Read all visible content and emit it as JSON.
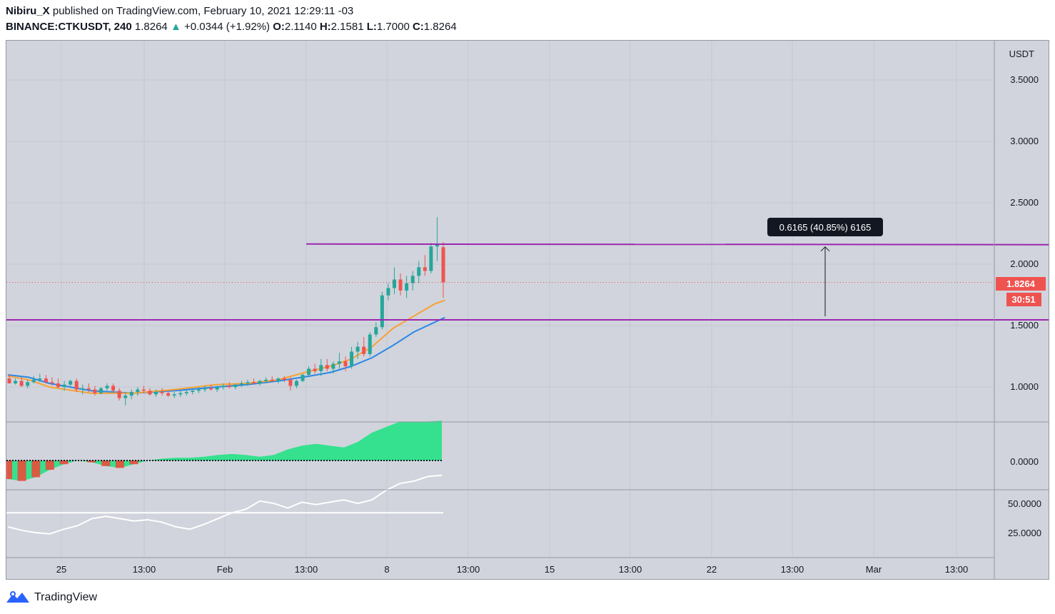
{
  "header": {
    "author": "Nibiru_X",
    "published_text": "published on TradingView.com, February 10, 2021 12:29:11 -03",
    "symbol": "BINANCE:CTKUSDT, 240",
    "last": "1.8264",
    "change": "+0.0344 (+1.92%)",
    "o_label": "O:",
    "o_value": "2.1140",
    "h_label": "H:",
    "h_value": "2.1581",
    "l_label": "L:",
    "l_value": "1.7000",
    "c_label": "C:",
    "c_value": "1.8264"
  },
  "price_scale": {
    "currency": "USDT",
    "ticks": [
      "3.5000",
      "3.0000",
      "2.5000",
      "2.0000",
      "1.5000",
      "1.0000"
    ],
    "last_price_label": "1.8264",
    "countdown_label": "30:51"
  },
  "oscillator_scale": {
    "ticks": [
      "0.0000"
    ]
  },
  "rsi_scale": {
    "ticks": [
      "50.0000",
      "25.0000"
    ]
  },
  "time_axis": {
    "ticks": [
      "25",
      "13:00",
      "Feb",
      "13:00",
      "8",
      "13:00",
      "15",
      "13:00",
      "22",
      "13:00",
      "Mar",
      "13:00"
    ]
  },
  "measure_label": "0.6165 (40.85%) 6165",
  "horizontal_lines": {
    "upper": 2.1405,
    "lower": 1.5195
  },
  "colors": {
    "up": "#26a69a",
    "down": "#ef5350",
    "pane_bg": "#d1d4dc",
    "levels": "#9c27b0",
    "ema_fast": "#f7a233",
    "ema_slow": "#2b87e6"
  },
  "footer": {
    "brand": "TradingView"
  },
  "chart_data": {
    "type": "candlestick",
    "symbol": "BINANCE:CTKUSDT",
    "timeframe": "240",
    "ylim": [
      0.55,
      3.7
    ],
    "x_range_bars": [
      0,
      363
    ],
    "ohlc": [
      [
        1.04,
        1.07,
        1.02,
        1.0
      ],
      [
        1.0,
        1.04,
        0.99,
        1.02
      ],
      [
        1.02,
        1.05,
        0.97,
        0.98
      ],
      [
        0.98,
        1.03,
        0.96,
        1.01
      ],
      [
        1.01,
        1.06,
        1.0,
        1.03
      ],
      [
        1.03,
        1.08,
        1.01,
        1.04
      ],
      [
        1.04,
        1.07,
        1.0,
        1.01
      ],
      [
        1.01,
        1.05,
        0.98,
        1.0
      ],
      [
        1.0,
        1.04,
        0.96,
        0.97
      ],
      [
        0.97,
        1.02,
        0.94,
        0.99
      ],
      [
        0.99,
        1.03,
        0.97,
        1.02
      ],
      [
        1.02,
        1.04,
        0.93,
        0.95
      ],
      [
        0.95,
        0.99,
        0.91,
        0.96
      ],
      [
        0.96,
        1.0,
        0.93,
        0.95
      ],
      [
        0.95,
        0.98,
        0.9,
        0.92
      ],
      [
        0.92,
        0.97,
        0.91,
        0.96
      ],
      [
        0.96,
        1.0,
        0.94,
        0.98
      ],
      [
        0.98,
        1.0,
        0.93,
        0.94
      ],
      [
        0.94,
        0.96,
        0.86,
        0.88
      ],
      [
        0.88,
        0.92,
        0.82,
        0.9
      ],
      [
        0.9,
        0.95,
        0.87,
        0.93
      ],
      [
        0.93,
        0.97,
        0.9,
        0.95
      ],
      [
        0.95,
        0.98,
        0.92,
        0.94
      ],
      [
        0.94,
        0.96,
        0.9,
        0.91
      ],
      [
        0.91,
        0.95,
        0.89,
        0.93
      ],
      [
        0.93,
        0.96,
        0.9,
        0.92
      ],
      [
        0.92,
        0.94,
        0.89,
        0.9
      ],
      [
        0.9,
        0.93,
        0.88,
        0.91
      ],
      [
        0.91,
        0.94,
        0.89,
        0.92
      ],
      [
        0.92,
        0.95,
        0.9,
        0.93
      ],
      [
        0.93,
        0.96,
        0.91,
        0.94
      ],
      [
        0.94,
        0.97,
        0.92,
        0.95
      ],
      [
        0.95,
        0.98,
        0.93,
        0.96
      ],
      [
        0.96,
        0.99,
        0.94,
        0.95
      ],
      [
        0.95,
        0.98,
        0.93,
        0.97
      ],
      [
        0.97,
        1.0,
        0.95,
        0.98
      ],
      [
        0.98,
        1.01,
        0.96,
        0.97
      ],
      [
        0.97,
        1.0,
        0.95,
        0.99
      ],
      [
        0.99,
        1.02,
        0.97,
        1.0
      ],
      [
        1.0,
        1.03,
        0.98,
        1.01
      ],
      [
        1.01,
        1.04,
        0.99,
        1.0
      ],
      [
        1.0,
        1.03,
        0.98,
        1.02
      ],
      [
        1.02,
        1.05,
        1.0,
        1.03
      ],
      [
        1.03,
        1.06,
        1.01,
        1.02
      ],
      [
        1.02,
        1.05,
        1.0,
        1.04
      ],
      [
        1.04,
        1.06,
        1.01,
        1.03
      ],
      [
        1.03,
        1.05,
        0.94,
        0.98
      ],
      [
        0.98,
        1.03,
        0.96,
        1.02
      ],
      [
        1.02,
        1.08,
        1.01,
        1.07
      ],
      [
        1.07,
        1.14,
        1.05,
        1.12
      ],
      [
        1.12,
        1.16,
        1.08,
        1.1
      ],
      [
        1.1,
        1.2,
        1.06,
        1.15
      ],
      [
        1.15,
        1.2,
        1.1,
        1.12
      ],
      [
        1.12,
        1.18,
        1.08,
        1.16
      ],
      [
        1.16,
        1.25,
        1.12,
        1.18
      ],
      [
        1.18,
        1.22,
        1.1,
        1.14
      ],
      [
        1.14,
        1.3,
        1.12,
        1.26
      ],
      [
        1.26,
        1.34,
        1.2,
        1.3
      ],
      [
        1.3,
        1.38,
        1.22,
        1.24
      ],
      [
        1.24,
        1.42,
        1.22,
        1.4
      ],
      [
        1.4,
        1.5,
        1.38,
        1.46
      ],
      [
        1.46,
        1.75,
        1.44,
        1.72
      ],
      [
        1.72,
        1.82,
        1.68,
        1.78
      ],
      [
        1.78,
        1.95,
        1.73,
        1.85
      ],
      [
        1.85,
        1.9,
        1.72,
        1.76
      ],
      [
        1.76,
        1.88,
        1.7,
        1.82
      ],
      [
        1.82,
        1.92,
        1.76,
        1.88
      ],
      [
        1.88,
        2.0,
        1.82,
        1.95
      ],
      [
        1.95,
        2.05,
        1.88,
        1.92
      ],
      [
        1.92,
        2.15,
        1.9,
        2.12
      ],
      [
        2.12,
        2.36,
        2.0,
        2.14
      ],
      [
        2.114,
        2.158,
        1.7,
        1.8264
      ]
    ],
    "ema_fast_anchors": [
      [
        0,
        1.06
      ],
      [
        12,
        1.03
      ],
      [
        24,
        0.97
      ],
      [
        48,
        0.92
      ],
      [
        72,
        0.92
      ],
      [
        96,
        0.95
      ],
      [
        120,
        0.99
      ],
      [
        138,
        1.0
      ],
      [
        156,
        1.03
      ],
      [
        174,
        1.1
      ],
      [
        186,
        1.14
      ],
      [
        198,
        1.2
      ],
      [
        210,
        1.3
      ],
      [
        222,
        1.45
      ],
      [
        234,
        1.55
      ],
      [
        246,
        1.65
      ],
      [
        252,
        1.68
      ]
    ],
    "ema_slow_anchors": [
      [
        0,
        1.07
      ],
      [
        12,
        1.05
      ],
      [
        24,
        1.0
      ],
      [
        48,
        0.94
      ],
      [
        72,
        0.92
      ],
      [
        96,
        0.94
      ],
      [
        120,
        0.97
      ],
      [
        138,
        0.99
      ],
      [
        156,
        1.02
      ],
      [
        174,
        1.06
      ],
      [
        186,
        1.09
      ],
      [
        198,
        1.14
      ],
      [
        210,
        1.21
      ],
      [
        222,
        1.31
      ],
      [
        234,
        1.42
      ],
      [
        246,
        1.5
      ],
      [
        252,
        1.54
      ]
    ],
    "oscillator": [
      -0.2,
      -0.22,
      -0.18,
      -0.1,
      -0.04,
      0.0,
      -0.02,
      -0.06,
      -0.08,
      -0.04,
      0.0,
      0.02,
      0.03,
      0.03,
      0.04,
      0.06,
      0.07,
      0.06,
      0.04,
      0.06,
      0.12,
      0.16,
      0.18,
      0.16,
      0.14,
      0.2,
      0.3,
      0.36,
      0.42,
      0.42,
      0.42,
      0.43
    ],
    "rsi": [
      33,
      30,
      28,
      27,
      31,
      34,
      40,
      42,
      40,
      38,
      39,
      37,
      33,
      31,
      35,
      40,
      45,
      48,
      55,
      53,
      49,
      54,
      52,
      54,
      56,
      53,
      56,
      64,
      70,
      72,
      76,
      77
    ],
    "rsi_level": 45
  }
}
